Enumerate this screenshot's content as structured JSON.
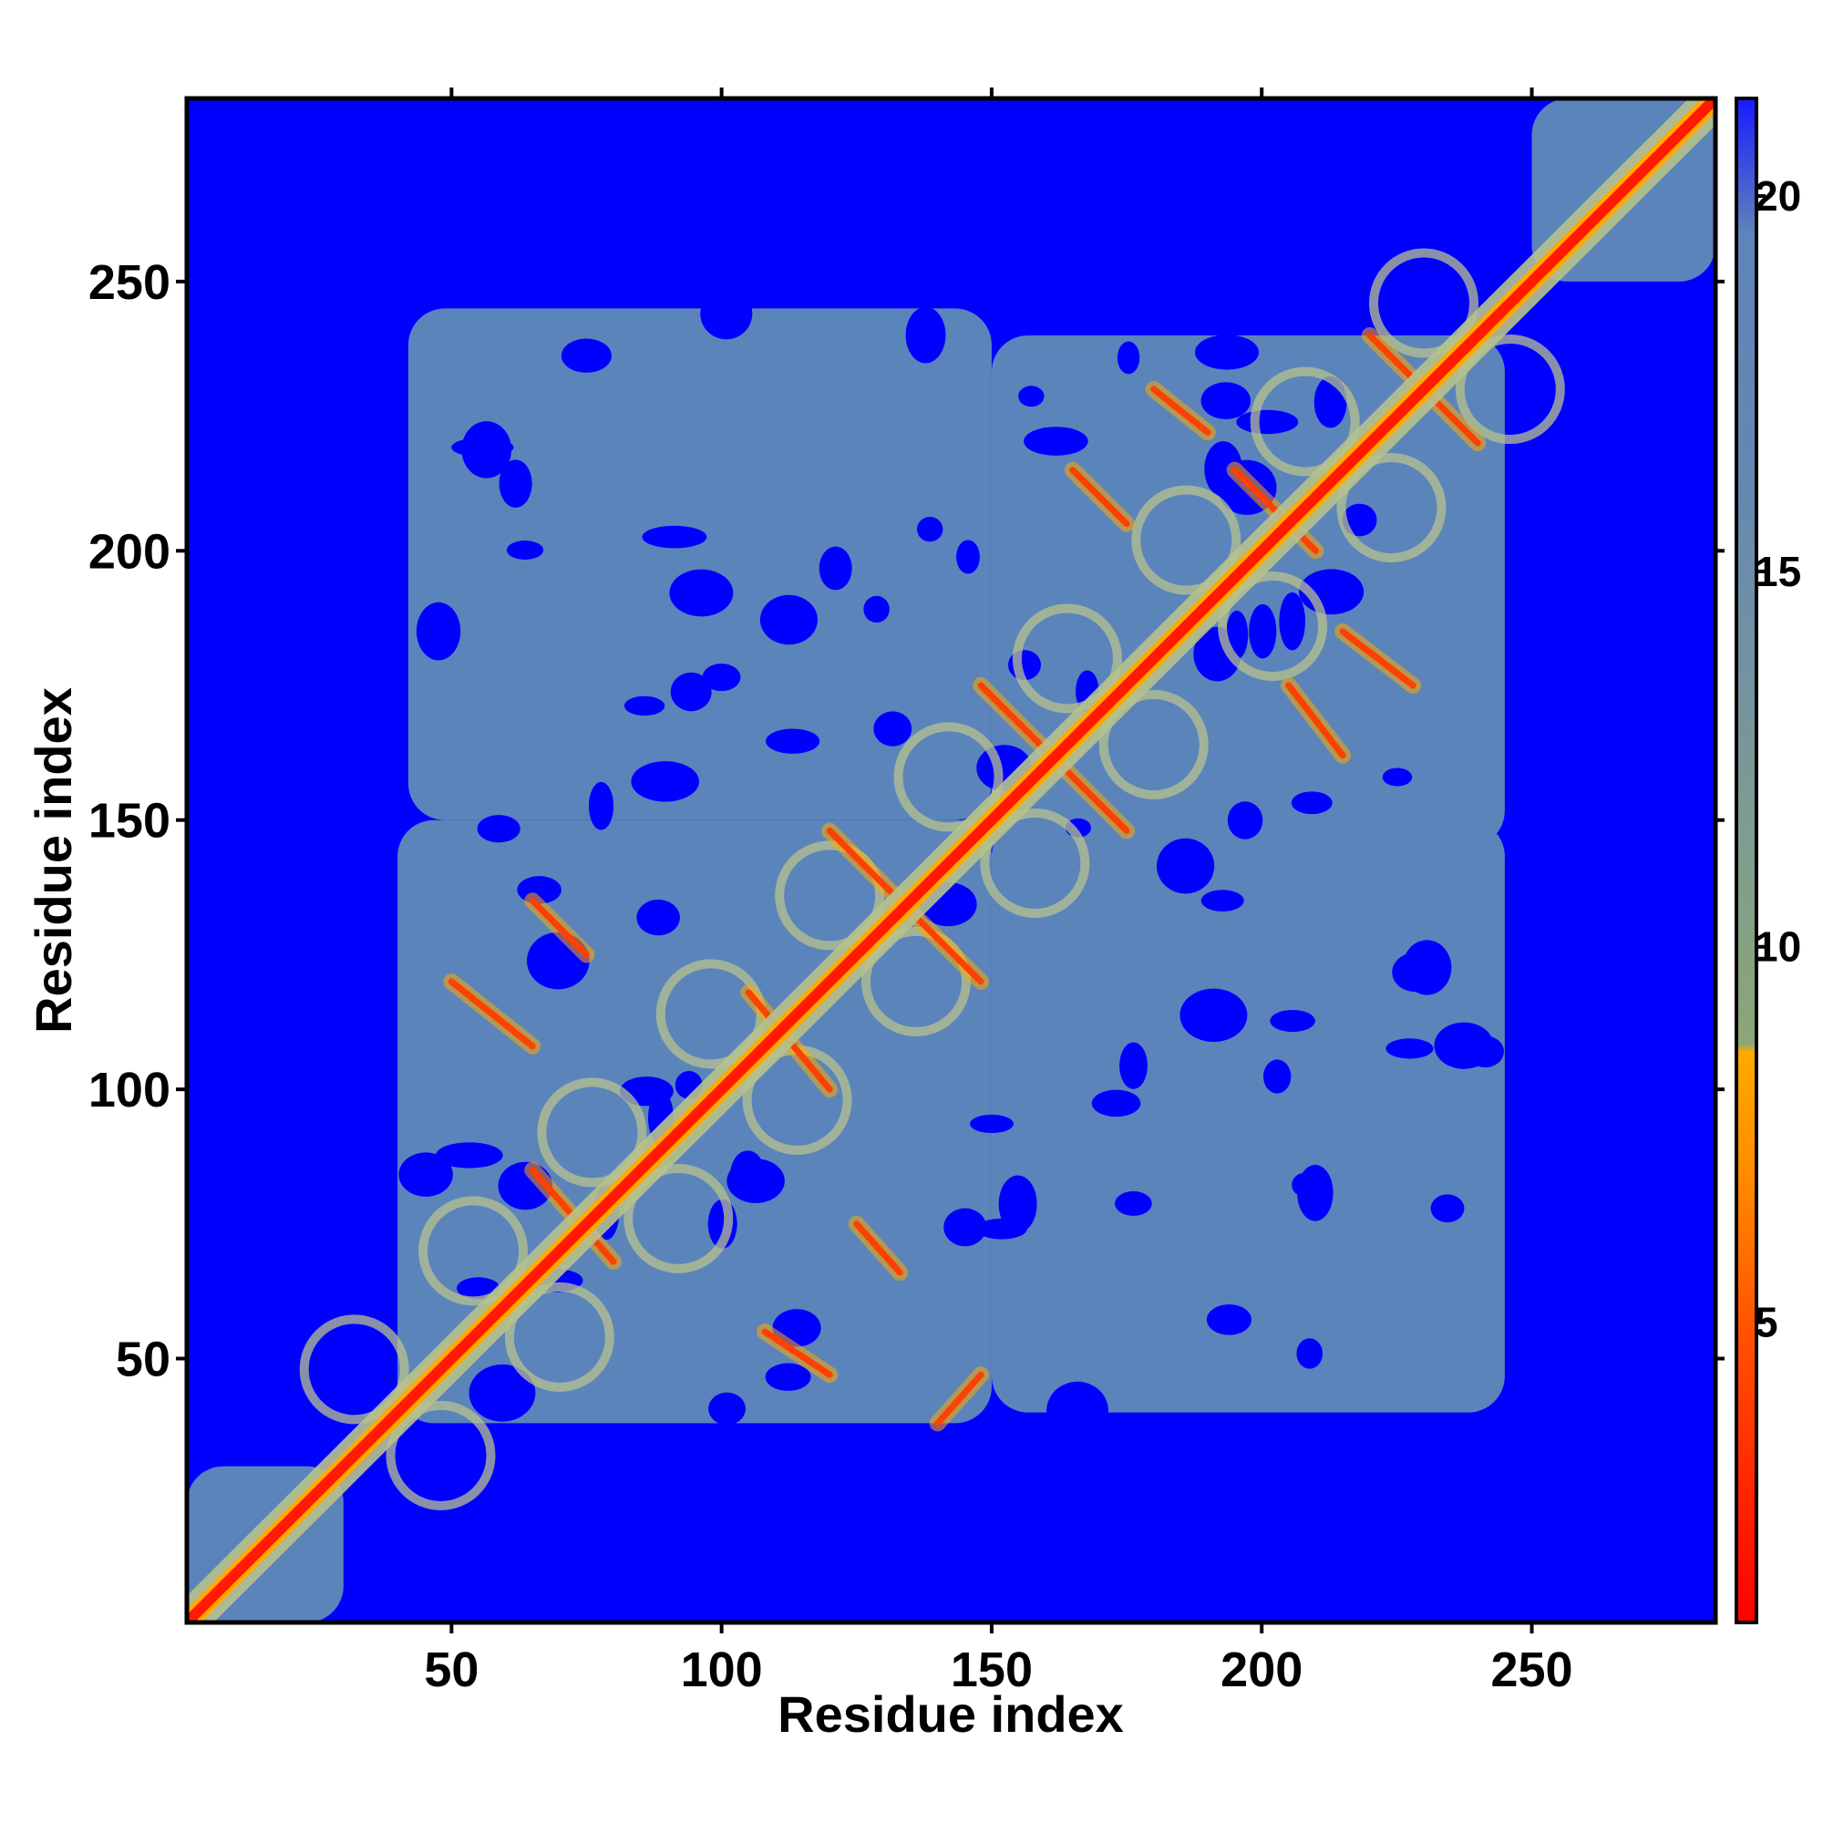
{
  "chart_data": {
    "type": "heatmap",
    "title": "",
    "xlabel": "Residue index",
    "ylabel": "Residue index",
    "xlim": [
      1,
      284
    ],
    "ylim": [
      1,
      284
    ],
    "xticks": [
      50,
      100,
      150,
      200,
      250
    ],
    "yticks": [
      50,
      100,
      150,
      200,
      250
    ],
    "grid": false,
    "colorbar": {
      "ticks": [
        5,
        10,
        15,
        20
      ],
      "range": [
        1,
        21.3
      ],
      "colors": [
        {
          "value": 1,
          "color": "#ff0000"
        },
        {
          "value": 3,
          "color": "#ff2a00"
        },
        {
          "value": 5,
          "color": "#ff5500"
        },
        {
          "value": 7,
          "color": "#ff8c00"
        },
        {
          "value": 8.6,
          "color": "#ffaa00"
        },
        {
          "value": 8.7,
          "color": "#8ca676"
        },
        {
          "value": 12,
          "color": "#7d9a94"
        },
        {
          "value": 16,
          "color": "#6688b0"
        },
        {
          "value": 19.5,
          "color": "#5e84b9"
        },
        {
          "value": 21.3,
          "color": "#1a1aff"
        }
      ]
    },
    "value_meaning": "pairwise residue distance; diagonal (i=j) is minimal",
    "background_color": "#0000ff",
    "contact_color": "#5b84bb",
    "helix_color": "#b7c28d",
    "diagonal_color": "#ff1a00",
    "contact_domains": [
      {
        "x": [
          40,
          150
        ],
        "y": [
          38,
          150
        ]
      },
      {
        "x": [
          150,
          245
        ],
        "y": [
          145,
          240
        ]
      },
      {
        "x": [
          42,
          150
        ],
        "y": [
          150,
          245
        ]
      },
      {
        "x": [
          150,
          245
        ],
        "y": [
          40,
          150
        ]
      },
      {
        "x": [
          1,
          30
        ],
        "y": [
          1,
          30
        ]
      },
      {
        "x": [
          250,
          284
        ],
        "y": [
          250,
          284
        ]
      }
    ],
    "strands": [
      {
        "x": [
          38,
          50
        ],
        "y": [
          40,
          52
        ]
      },
      {
        "x": [
          50,
          65
        ],
        "y": [
          120,
          108
        ]
      },
      {
        "x": [
          65,
          75
        ],
        "y": [
          135,
          125
        ]
      },
      {
        "x": [
          65,
          80
        ],
        "y": [
          85,
          68
        ]
      },
      {
        "x": [
          108,
          120
        ],
        "y": [
          55,
          47
        ]
      },
      {
        "x": [
          120,
          148
        ],
        "y": [
          148,
          120
        ]
      },
      {
        "x": [
          125,
          133
        ],
        "y": [
          75,
          66
        ]
      },
      {
        "x": [
          140,
          148
        ],
        "y": [
          38,
          47
        ]
      },
      {
        "x": [
          105,
          120
        ],
        "y": [
          118,
          100
        ]
      },
      {
        "x": [
          148,
          175
        ],
        "y": [
          175,
          148
        ]
      },
      {
        "x": [
          165,
          175
        ],
        "y": [
          215,
          205
        ]
      },
      {
        "x": [
          180,
          190
        ],
        "y": [
          230,
          222
        ]
      },
      {
        "x": [
          195,
          210
        ],
        "y": [
          215,
          200
        ]
      },
      {
        "x": [
          220,
          240
        ],
        "y": [
          240,
          220
        ]
      },
      {
        "x": [
          205,
          215
        ],
        "y": [
          175,
          162
        ]
      },
      {
        "x": [
          215,
          228
        ],
        "y": [
          185,
          175
        ]
      }
    ]
  }
}
